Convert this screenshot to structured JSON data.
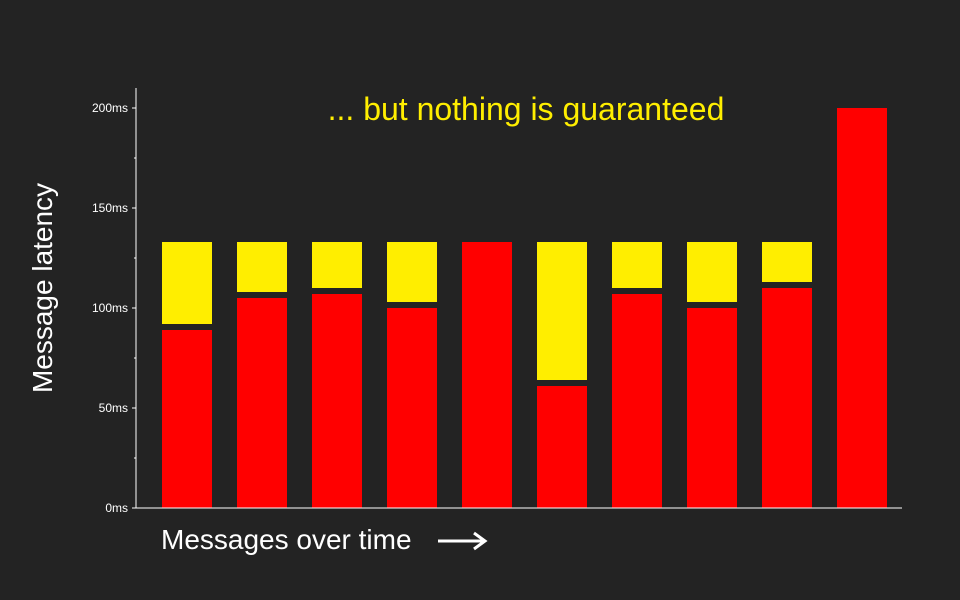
{
  "chart_data": {
    "type": "bar",
    "stacked": true,
    "title": "... but nothing is guaranteed",
    "xlabel": "Messages over time",
    "ylabel": "Message latency",
    "ylim": [
      0,
      200
    ],
    "y_ticks": [
      {
        "value": 0,
        "label": "0ms"
      },
      {
        "value": 50,
        "label": "50ms"
      },
      {
        "value": 100,
        "label": "100ms"
      },
      {
        "value": 150,
        "label": "150ms"
      },
      {
        "value": 200,
        "label": "200ms"
      }
    ],
    "y_minor_tick_step": 25,
    "grid": false,
    "legend": "none",
    "colors": {
      "background": "#232323",
      "lower": "#ff0000",
      "upper": "#ffee00",
      "axis": "#ffffff"
    },
    "bars": [
      {
        "lower": 89,
        "upper_top": 133
      },
      {
        "lower": 105,
        "upper_top": 133
      },
      {
        "lower": 107,
        "upper_top": 133
      },
      {
        "lower": 100,
        "upper_top": 133
      },
      {
        "lower": 133,
        "upper_top": 133
      },
      {
        "lower": 61,
        "upper_top": 133
      },
      {
        "lower": 107,
        "upper_top": 133
      },
      {
        "lower": 100,
        "upper_top": 133
      },
      {
        "lower": 110,
        "upper_top": 133
      },
      {
        "lower": 200,
        "upper_top": 200
      }
    ]
  }
}
